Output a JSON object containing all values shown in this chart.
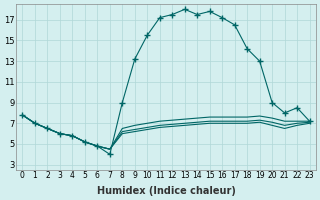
{
  "xlabel": "Humidex (Indice chaleur)",
  "ylabel": "",
  "background_color": "#d4efef",
  "grid_color": "#b0d8d8",
  "line_color": "#006666",
  "x_ticks": [
    0,
    1,
    2,
    3,
    4,
    5,
    6,
    7,
    8,
    9,
    10,
    11,
    12,
    13,
    14,
    15,
    16,
    17,
    18,
    19,
    20,
    21,
    22,
    23
  ],
  "y_ticks": [
    3,
    5,
    7,
    9,
    11,
    13,
    15,
    17
  ],
  "xlim": [
    -0.5,
    23.5
  ],
  "ylim": [
    2.5,
    18.5
  ],
  "series1": [
    7.8,
    7.0,
    6.5,
    6.0,
    5.8,
    5.2,
    4.8,
    4.0,
    9.0,
    13.2,
    15.5,
    17.2,
    17.5,
    18.0,
    17.5,
    17.8,
    17.2,
    16.5,
    14.2,
    13.0,
    9.0,
    8.0,
    8.5,
    7.2
  ],
  "series2": [
    7.8,
    7.0,
    6.5,
    6.0,
    5.8,
    5.2,
    4.8,
    4.5,
    6.5,
    6.8,
    7.0,
    7.2,
    7.3,
    7.4,
    7.5,
    7.6,
    7.6,
    7.6,
    7.6,
    7.7,
    7.5,
    7.2,
    7.2,
    7.2
  ],
  "series3": [
    7.8,
    7.0,
    6.5,
    6.0,
    5.8,
    5.2,
    4.8,
    4.5,
    6.0,
    6.2,
    6.4,
    6.6,
    6.7,
    6.8,
    6.9,
    7.0,
    7.0,
    7.0,
    7.0,
    7.1,
    6.8,
    6.5,
    6.8,
    7.0
  ],
  "series4": [
    7.8,
    7.0,
    6.5,
    6.0,
    5.8,
    5.2,
    4.8,
    4.5,
    6.2,
    6.4,
    6.6,
    6.8,
    6.9,
    7.0,
    7.1,
    7.2,
    7.2,
    7.2,
    7.2,
    7.3,
    7.1,
    6.8,
    7.0,
    7.1
  ]
}
